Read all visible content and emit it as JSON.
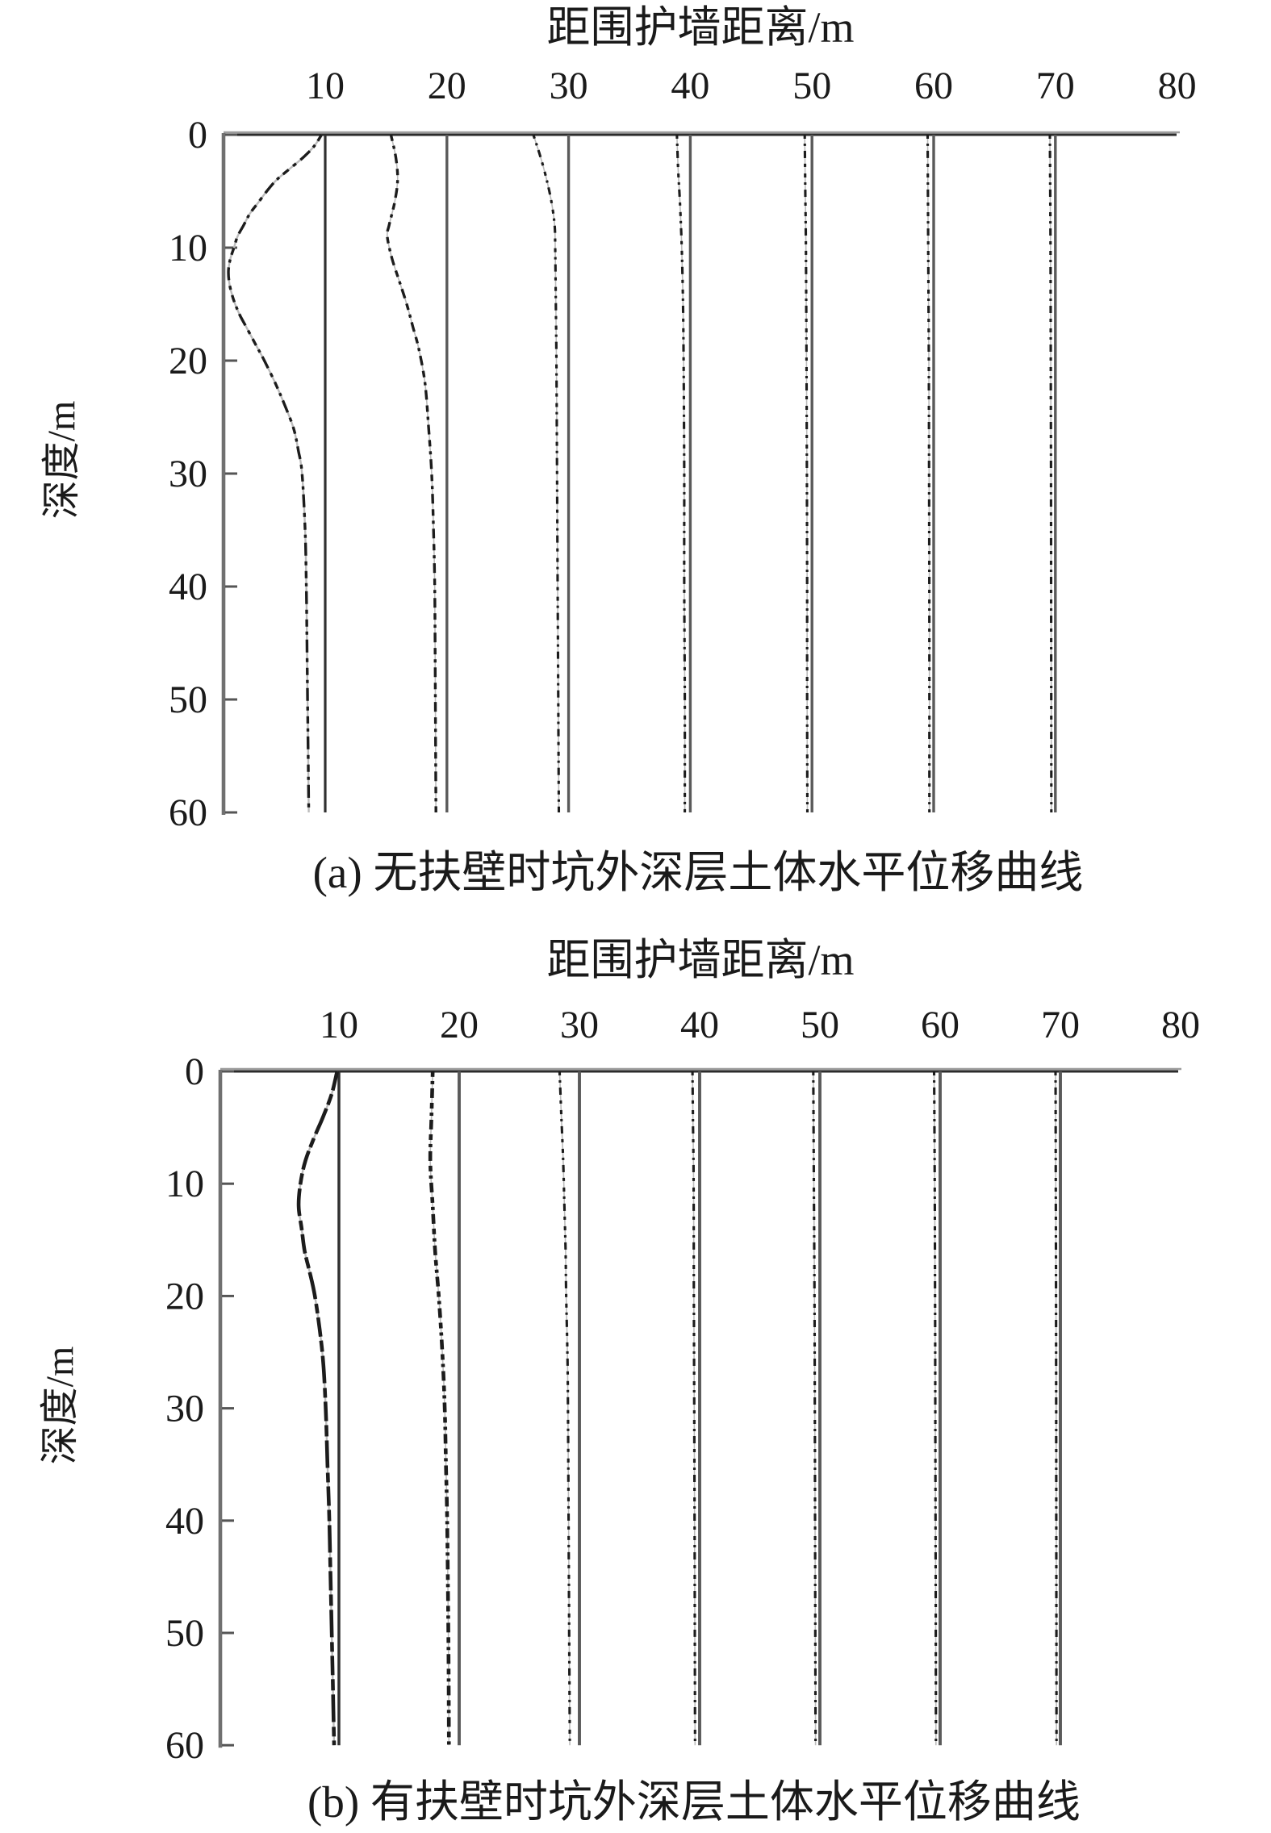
{
  "figure": {
    "background": "#ffffff",
    "ink": "#1a1a1a",
    "wall_line_near_color": "#303030",
    "wall_line_color": "#5a5a5a",
    "axis_color": "#707070",
    "axis_top_black": "#2b2b2b",
    "axis_top_gray": "#9c9c9c",
    "curve_color": "#1c1c1c",
    "curve_backing_color": "#bcbcbc"
  },
  "chart_data": [
    {
      "type": "line",
      "panel": "a",
      "title": "距围护墙距离/m",
      "xlabel": "距围护墙距离/m",
      "ylabel": "深度/m",
      "caption": "(a) 无扶壁时坑外深层土体水平位移曲线",
      "x_ticks": [
        10,
        20,
        30,
        40,
        50,
        60,
        70,
        80
      ],
      "y_ticks": [
        0,
        10,
        20,
        30,
        40,
        50,
        60
      ],
      "xlim": [
        0,
        80
      ],
      "ylim": [
        0,
        60
      ],
      "y_inverted": true,
      "grid": false,
      "legend": "none",
      "wall_distances_m": [
        10,
        20,
        30,
        40,
        50,
        60,
        70
      ],
      "offset_note": "profile points are [depth_m, leftward_offset_m_at_drawing_scale] measured from each vertical reference line",
      "series": [
        {
          "name": "x=10 m",
          "distance_m": 10,
          "profile_depth_offset_m": [
            [
              0,
              0.3
            ],
            [
              1,
              0.9
            ],
            [
              2,
              1.8
            ],
            [
              3,
              2.9
            ],
            [
              4,
              4.0
            ],
            [
              5,
              4.8
            ],
            [
              6,
              5.5
            ],
            [
              7,
              6.2
            ],
            [
              8,
              6.7
            ],
            [
              9,
              7.2
            ],
            [
              10,
              7.5
            ],
            [
              11,
              7.8
            ],
            [
              12,
              7.95
            ],
            [
              13,
              7.9
            ],
            [
              14,
              7.7
            ],
            [
              15,
              7.4
            ],
            [
              16,
              7.0
            ],
            [
              17,
              6.5
            ],
            [
              18,
              6.0
            ],
            [
              19,
              5.5
            ],
            [
              20,
              5.0
            ],
            [
              22,
              4.1
            ],
            [
              24,
              3.3
            ],
            [
              26,
              2.6
            ],
            [
              28,
              2.2
            ],
            [
              30,
              1.9
            ],
            [
              35,
              1.65
            ],
            [
              40,
              1.55
            ],
            [
              45,
              1.5
            ],
            [
              50,
              1.45
            ],
            [
              55,
              1.4
            ],
            [
              60,
              1.35
            ]
          ]
        },
        {
          "name": "x=20 m",
          "distance_m": 20,
          "profile_depth_offset_m": [
            [
              0,
              4.6
            ],
            [
              2,
              4.2
            ],
            [
              4,
              4.05
            ],
            [
              6,
              4.3
            ],
            [
              8,
              4.75
            ],
            [
              9,
              4.9
            ],
            [
              11,
              4.5
            ],
            [
              13,
              3.9
            ],
            [
              15,
              3.3
            ],
            [
              17,
              2.8
            ],
            [
              19,
              2.3
            ],
            [
              22,
              1.8
            ],
            [
              26,
              1.5
            ],
            [
              30,
              1.25
            ],
            [
              35,
              1.1
            ],
            [
              40,
              1.0
            ],
            [
              50,
              0.95
            ],
            [
              60,
              0.9
            ]
          ]
        },
        {
          "name": "x=30 m",
          "distance_m": 30,
          "profile_depth_offset_m": [
            [
              0,
              2.9
            ],
            [
              2,
              2.3
            ],
            [
              4,
              1.8
            ],
            [
              6,
              1.4
            ],
            [
              8,
              1.15
            ],
            [
              10,
              1.1
            ],
            [
              15,
              1.05
            ],
            [
              20,
              1.0
            ],
            [
              30,
              0.95
            ],
            [
              40,
              0.9
            ],
            [
              50,
              0.85
            ],
            [
              60,
              0.8
            ]
          ]
        },
        {
          "name": "x=40 m",
          "distance_m": 40,
          "profile_depth_offset_m": [
            [
              0,
              1.1
            ],
            [
              3,
              1.0
            ],
            [
              6,
              0.85
            ],
            [
              10,
              0.7
            ],
            [
              15,
              0.6
            ],
            [
              20,
              0.55
            ],
            [
              30,
              0.5
            ],
            [
              40,
              0.5
            ],
            [
              50,
              0.45
            ],
            [
              60,
              0.45
            ]
          ]
        },
        {
          "name": "x=50 m",
          "distance_m": 50,
          "profile_depth_offset_m": [
            [
              0,
              0.6
            ],
            [
              5,
              0.55
            ],
            [
              10,
              0.5
            ],
            [
              20,
              0.45
            ],
            [
              30,
              0.42
            ],
            [
              40,
              0.4
            ],
            [
              50,
              0.4
            ],
            [
              60,
              0.38
            ]
          ]
        },
        {
          "name": "x=60 m",
          "distance_m": 60,
          "profile_depth_offset_m": [
            [
              0,
              0.5
            ],
            [
              10,
              0.45
            ],
            [
              20,
              0.4
            ],
            [
              30,
              0.38
            ],
            [
              40,
              0.36
            ],
            [
              50,
              0.35
            ],
            [
              60,
              0.35
            ]
          ]
        },
        {
          "name": "x=70 m",
          "distance_m": 70,
          "profile_depth_offset_m": [
            [
              0,
              0.45
            ],
            [
              10,
              0.4
            ],
            [
              20,
              0.38
            ],
            [
              30,
              0.36
            ],
            [
              40,
              0.35
            ],
            [
              50,
              0.34
            ],
            [
              60,
              0.33
            ]
          ]
        }
      ]
    },
    {
      "type": "line",
      "panel": "b",
      "title": "距围护墙距离/m",
      "xlabel": "距围护墙距离/m",
      "ylabel": "深度/m",
      "caption": "(b) 有扶壁时坑外深层土体水平位移曲线",
      "x_ticks": [
        10,
        20,
        30,
        40,
        50,
        60,
        70,
        80
      ],
      "y_ticks": [
        0,
        10,
        20,
        30,
        40,
        50,
        60
      ],
      "xlim": [
        0,
        80
      ],
      "ylim": [
        0,
        60
      ],
      "y_inverted": true,
      "grid": false,
      "legend": "none",
      "wall_distances_m": [
        10,
        20,
        30,
        40,
        50,
        60,
        70
      ],
      "offset_note": "profile points are [depth_m, leftward_offset_m_at_drawing_scale] measured from each vertical reference line",
      "series": [
        {
          "name": "x=10 m",
          "distance_m": 10,
          "profile_depth_offset_m": [
            [
              0,
              0.15
            ],
            [
              2,
              0.6
            ],
            [
              4,
              1.3
            ],
            [
              6,
              2.1
            ],
            [
              8,
              2.8
            ],
            [
              10,
              3.2
            ],
            [
              12,
              3.35
            ],
            [
              14,
              3.1
            ],
            [
              16,
              2.85
            ],
            [
              18,
              2.4
            ],
            [
              20,
              2.0
            ],
            [
              23,
              1.6
            ],
            [
              26,
              1.3
            ],
            [
              30,
              1.1
            ],
            [
              35,
              0.95
            ],
            [
              40,
              0.8
            ],
            [
              45,
              0.7
            ],
            [
              50,
              0.6
            ],
            [
              55,
              0.5
            ],
            [
              60,
              0.4
            ]
          ]
        },
        {
          "name": "x=20 m",
          "distance_m": 20,
          "profile_depth_offset_m": [
            [
              0,
              2.2
            ],
            [
              4,
              2.3
            ],
            [
              8,
              2.4
            ],
            [
              12,
              2.2
            ],
            [
              16,
              2.0
            ],
            [
              20,
              1.7
            ],
            [
              25,
              1.4
            ],
            [
              30,
              1.2
            ],
            [
              35,
              1.1
            ],
            [
              40,
              1.0
            ],
            [
              50,
              0.9
            ],
            [
              60,
              0.85
            ]
          ]
        },
        {
          "name": "x=30 m",
          "distance_m": 30,
          "profile_depth_offset_m": [
            [
              0,
              1.65
            ],
            [
              4,
              1.5
            ],
            [
              8,
              1.35
            ],
            [
              12,
              1.25
            ],
            [
              16,
              1.15
            ],
            [
              20,
              1.1
            ],
            [
              25,
              1.0
            ],
            [
              30,
              0.95
            ],
            [
              40,
              0.9
            ],
            [
              50,
              0.85
            ],
            [
              60,
              0.8
            ]
          ]
        },
        {
          "name": "x=40 m",
          "distance_m": 40,
          "profile_depth_offset_m": [
            [
              0,
              0.6
            ],
            [
              5,
              0.55
            ],
            [
              10,
              0.5
            ],
            [
              20,
              0.48
            ],
            [
              30,
              0.45
            ],
            [
              40,
              0.42
            ],
            [
              50,
              0.4
            ],
            [
              60,
              0.38
            ]
          ]
        },
        {
          "name": "x=50 m",
          "distance_m": 50,
          "profile_depth_offset_m": [
            [
              0,
              0.55
            ],
            [
              10,
              0.5
            ],
            [
              20,
              0.45
            ],
            [
              30,
              0.42
            ],
            [
              40,
              0.4
            ],
            [
              50,
              0.38
            ],
            [
              60,
              0.36
            ]
          ]
        },
        {
          "name": "x=60 m",
          "distance_m": 60,
          "profile_depth_offset_m": [
            [
              0,
              0.5
            ],
            [
              10,
              0.45
            ],
            [
              20,
              0.42
            ],
            [
              30,
              0.4
            ],
            [
              40,
              0.38
            ],
            [
              50,
              0.36
            ],
            [
              60,
              0.35
            ]
          ]
        },
        {
          "name": "x=70 m",
          "distance_m": 70,
          "profile_depth_offset_m": [
            [
              0,
              0.4
            ],
            [
              10,
              0.38
            ],
            [
              20,
              0.36
            ],
            [
              30,
              0.35
            ],
            [
              40,
              0.34
            ],
            [
              50,
              0.33
            ],
            [
              60,
              0.32
            ]
          ]
        }
      ]
    }
  ]
}
